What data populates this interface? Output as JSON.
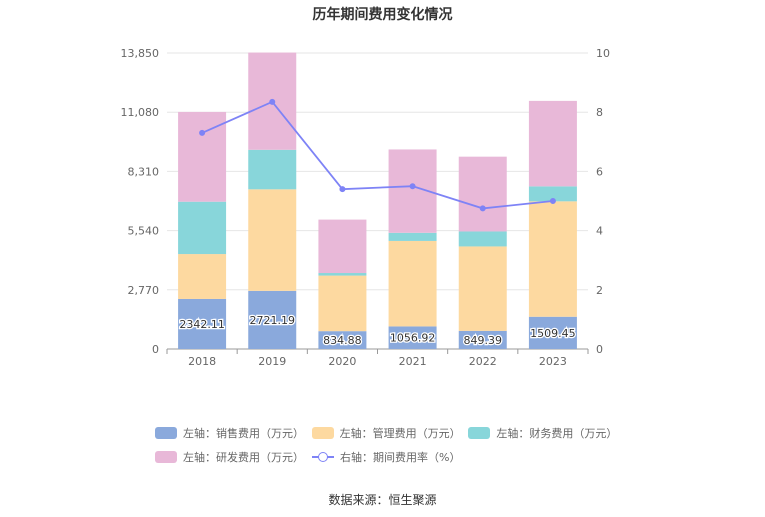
{
  "chart_data": {
    "type": "bar",
    "title": "历年期间费用变化情况",
    "categories": [
      "2018",
      "2019",
      "2020",
      "2021",
      "2022",
      "2023"
    ],
    "stacked": true,
    "y_left": {
      "ylim": [
        0,
        13850
      ],
      "ticks": [
        "0",
        "2,770",
        "5,540",
        "8,310",
        "11,080",
        "13,850"
      ]
    },
    "y_right": {
      "ylim": [
        0,
        10
      ],
      "ticks": [
        "0",
        "2",
        "4",
        "6",
        "8",
        "10"
      ]
    },
    "series": [
      {
        "name": "左轴：销售费用（万元）",
        "axis": "left",
        "color": "#8aa9dc",
        "values": [
          2342.11,
          2721.19,
          834.88,
          1056.92,
          849.39,
          1509.45
        ],
        "labels": [
          "2342.11",
          "2721.19",
          "834.88",
          "1056.92",
          "849.39",
          "1509.45"
        ]
      },
      {
        "name": "左轴：管理费用（万元）",
        "axis": "left",
        "color": "#fdd9a0",
        "values": [
          2100,
          4750,
          2600,
          4000,
          3950,
          5400
        ]
      },
      {
        "name": "左轴：财务费用（万元）",
        "axis": "left",
        "color": "#88d6da",
        "values": [
          2450,
          1850,
          120,
          380,
          700,
          700
        ]
      },
      {
        "name": "左轴：研发费用（万元）",
        "axis": "left",
        "color": "#e8b8d8",
        "values": [
          4200,
          4550,
          2500,
          3900,
          3500,
          4000
        ]
      },
      {
        "name": "右轴：期间费用率（%）",
        "axis": "right",
        "type": "line",
        "color": "#7e83f6",
        "values": [
          7.3,
          8.35,
          5.4,
          5.5,
          4.75,
          5.0
        ]
      }
    ],
    "legend_position": "bottom",
    "grid": true
  },
  "source": "数据来源：恒生聚源"
}
